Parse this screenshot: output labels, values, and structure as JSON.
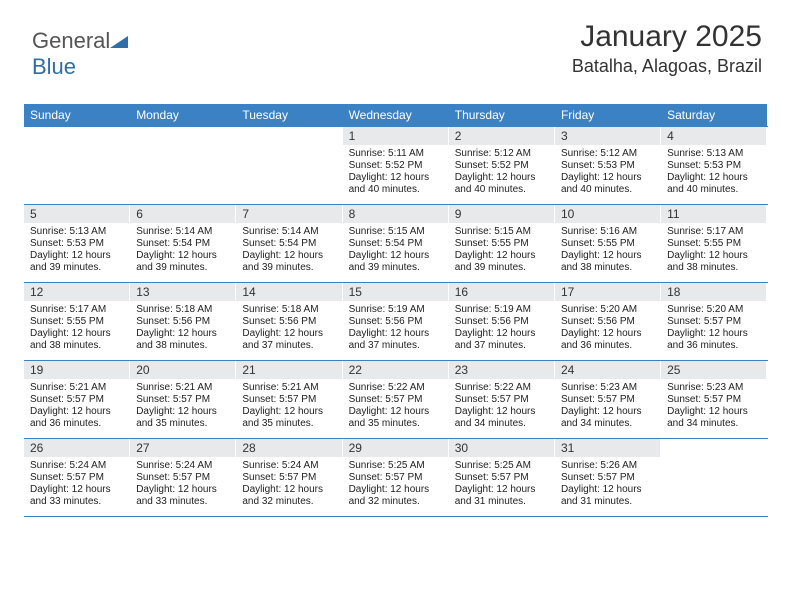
{
  "logo": {
    "text1": "General",
    "text2": "Blue"
  },
  "title": "January 2025",
  "location": "Batalha, Alagoas, Brazil",
  "colors": {
    "header_bg": "#3b82c4",
    "header_text": "#ffffff",
    "daybar_bg": "#e8e9ea",
    "border": "#3b82c4",
    "body_text": "#222222"
  },
  "day_headers": [
    "Sunday",
    "Monday",
    "Tuesday",
    "Wednesday",
    "Thursday",
    "Friday",
    "Saturday"
  ],
  "weeks": [
    [
      {
        "n": "",
        "sr": "",
        "ss": "",
        "dl": "",
        "empty": true
      },
      {
        "n": "",
        "sr": "",
        "ss": "",
        "dl": "",
        "empty": true
      },
      {
        "n": "",
        "sr": "",
        "ss": "",
        "dl": "",
        "empty": true
      },
      {
        "n": "1",
        "sr": "Sunrise: 5:11 AM",
        "ss": "Sunset: 5:52 PM",
        "dl": "Daylight: 12 hours and 40 minutes."
      },
      {
        "n": "2",
        "sr": "Sunrise: 5:12 AM",
        "ss": "Sunset: 5:52 PM",
        "dl": "Daylight: 12 hours and 40 minutes."
      },
      {
        "n": "3",
        "sr": "Sunrise: 5:12 AM",
        "ss": "Sunset: 5:53 PM",
        "dl": "Daylight: 12 hours and 40 minutes."
      },
      {
        "n": "4",
        "sr": "Sunrise: 5:13 AM",
        "ss": "Sunset: 5:53 PM",
        "dl": "Daylight: 12 hours and 40 minutes."
      }
    ],
    [
      {
        "n": "5",
        "sr": "Sunrise: 5:13 AM",
        "ss": "Sunset: 5:53 PM",
        "dl": "Daylight: 12 hours and 39 minutes."
      },
      {
        "n": "6",
        "sr": "Sunrise: 5:14 AM",
        "ss": "Sunset: 5:54 PM",
        "dl": "Daylight: 12 hours and 39 minutes."
      },
      {
        "n": "7",
        "sr": "Sunrise: 5:14 AM",
        "ss": "Sunset: 5:54 PM",
        "dl": "Daylight: 12 hours and 39 minutes."
      },
      {
        "n": "8",
        "sr": "Sunrise: 5:15 AM",
        "ss": "Sunset: 5:54 PM",
        "dl": "Daylight: 12 hours and 39 minutes."
      },
      {
        "n": "9",
        "sr": "Sunrise: 5:15 AM",
        "ss": "Sunset: 5:55 PM",
        "dl": "Daylight: 12 hours and 39 minutes."
      },
      {
        "n": "10",
        "sr": "Sunrise: 5:16 AM",
        "ss": "Sunset: 5:55 PM",
        "dl": "Daylight: 12 hours and 38 minutes."
      },
      {
        "n": "11",
        "sr": "Sunrise: 5:17 AM",
        "ss": "Sunset: 5:55 PM",
        "dl": "Daylight: 12 hours and 38 minutes."
      }
    ],
    [
      {
        "n": "12",
        "sr": "Sunrise: 5:17 AM",
        "ss": "Sunset: 5:55 PM",
        "dl": "Daylight: 12 hours and 38 minutes."
      },
      {
        "n": "13",
        "sr": "Sunrise: 5:18 AM",
        "ss": "Sunset: 5:56 PM",
        "dl": "Daylight: 12 hours and 38 minutes."
      },
      {
        "n": "14",
        "sr": "Sunrise: 5:18 AM",
        "ss": "Sunset: 5:56 PM",
        "dl": "Daylight: 12 hours and 37 minutes."
      },
      {
        "n": "15",
        "sr": "Sunrise: 5:19 AM",
        "ss": "Sunset: 5:56 PM",
        "dl": "Daylight: 12 hours and 37 minutes."
      },
      {
        "n": "16",
        "sr": "Sunrise: 5:19 AM",
        "ss": "Sunset: 5:56 PM",
        "dl": "Daylight: 12 hours and 37 minutes."
      },
      {
        "n": "17",
        "sr": "Sunrise: 5:20 AM",
        "ss": "Sunset: 5:56 PM",
        "dl": "Daylight: 12 hours and 36 minutes."
      },
      {
        "n": "18",
        "sr": "Sunrise: 5:20 AM",
        "ss": "Sunset: 5:57 PM",
        "dl": "Daylight: 12 hours and 36 minutes."
      }
    ],
    [
      {
        "n": "19",
        "sr": "Sunrise: 5:21 AM",
        "ss": "Sunset: 5:57 PM",
        "dl": "Daylight: 12 hours and 36 minutes."
      },
      {
        "n": "20",
        "sr": "Sunrise: 5:21 AM",
        "ss": "Sunset: 5:57 PM",
        "dl": "Daylight: 12 hours and 35 minutes."
      },
      {
        "n": "21",
        "sr": "Sunrise: 5:21 AM",
        "ss": "Sunset: 5:57 PM",
        "dl": "Daylight: 12 hours and 35 minutes."
      },
      {
        "n": "22",
        "sr": "Sunrise: 5:22 AM",
        "ss": "Sunset: 5:57 PM",
        "dl": "Daylight: 12 hours and 35 minutes."
      },
      {
        "n": "23",
        "sr": "Sunrise: 5:22 AM",
        "ss": "Sunset: 5:57 PM",
        "dl": "Daylight: 12 hours and 34 minutes."
      },
      {
        "n": "24",
        "sr": "Sunrise: 5:23 AM",
        "ss": "Sunset: 5:57 PM",
        "dl": "Daylight: 12 hours and 34 minutes."
      },
      {
        "n": "25",
        "sr": "Sunrise: 5:23 AM",
        "ss": "Sunset: 5:57 PM",
        "dl": "Daylight: 12 hours and 34 minutes."
      }
    ],
    [
      {
        "n": "26",
        "sr": "Sunrise: 5:24 AM",
        "ss": "Sunset: 5:57 PM",
        "dl": "Daylight: 12 hours and 33 minutes."
      },
      {
        "n": "27",
        "sr": "Sunrise: 5:24 AM",
        "ss": "Sunset: 5:57 PM",
        "dl": "Daylight: 12 hours and 33 minutes."
      },
      {
        "n": "28",
        "sr": "Sunrise: 5:24 AM",
        "ss": "Sunset: 5:57 PM",
        "dl": "Daylight: 12 hours and 32 minutes."
      },
      {
        "n": "29",
        "sr": "Sunrise: 5:25 AM",
        "ss": "Sunset: 5:57 PM",
        "dl": "Daylight: 12 hours and 32 minutes."
      },
      {
        "n": "30",
        "sr": "Sunrise: 5:25 AM",
        "ss": "Sunset: 5:57 PM",
        "dl": "Daylight: 12 hours and 31 minutes."
      },
      {
        "n": "31",
        "sr": "Sunrise: 5:26 AM",
        "ss": "Sunset: 5:57 PM",
        "dl": "Daylight: 12 hours and 31 minutes."
      },
      {
        "n": "",
        "sr": "",
        "ss": "",
        "dl": "",
        "empty": true
      }
    ]
  ]
}
